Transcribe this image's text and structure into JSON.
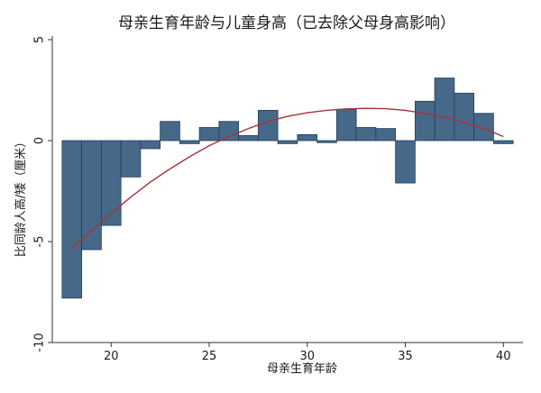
{
  "chart_data": {
    "type": "bar",
    "title": "母亲生育年龄与儿童身高（已去除父母身高影响）",
    "xlabel": "母亲生育年龄",
    "ylabel": "比同龄人高/矮（厘米）",
    "xlim": [
      17,
      41
    ],
    "ylim": [
      -10,
      5
    ],
    "xticks": [
      20,
      25,
      30,
      35,
      40
    ],
    "yticks": [
      -10,
      -5,
      0,
      5
    ],
    "ytick_labels": [
      "-10",
      "-5",
      "0",
      "5"
    ],
    "grid": false,
    "bar_width": 1,
    "x": [
      18,
      19,
      20,
      21,
      22,
      23,
      24,
      25,
      26,
      27,
      28,
      29,
      30,
      31,
      32,
      33,
      34,
      35,
      36,
      37,
      38,
      39,
      40
    ],
    "values": [
      -7.8,
      -5.4,
      -4.2,
      -1.8,
      -0.4,
      0.95,
      -0.15,
      0.65,
      0.95,
      0.25,
      1.5,
      -0.15,
      0.3,
      -0.1,
      1.55,
      0.65,
      0.6,
      -2.1,
      1.95,
      3.1,
      2.35,
      1.35,
      -0.15
    ],
    "fit_curve": {
      "type": "quadratic",
      "x": [
        18,
        19,
        20,
        21,
        22,
        23,
        24,
        25,
        26,
        27,
        28,
        29,
        30,
        31,
        32,
        33,
        34,
        35,
        36,
        37,
        38,
        39,
        40
      ],
      "y": [
        -5.35,
        -4.45,
        -3.6,
        -2.8,
        -2.05,
        -1.4,
        -0.8,
        -0.25,
        0.2,
        0.6,
        0.95,
        1.2,
        1.38,
        1.5,
        1.57,
        1.6,
        1.58,
        1.5,
        1.35,
        1.15,
        0.9,
        0.6,
        0.2
      ]
    },
    "colors": {
      "bar": "#46698a",
      "bar_edge": "#1f3f5a",
      "curve": "#a8323a",
      "axis": "#333333",
      "text": "#1a1a1a"
    }
  }
}
